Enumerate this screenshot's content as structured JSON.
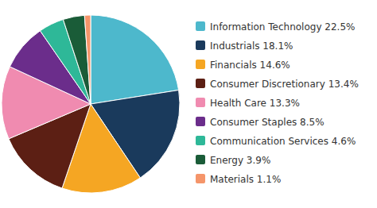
{
  "chart_data": {
    "type": "pie",
    "categories": [
      "Information Technology 22.5%",
      "Industrials 18.1%",
      "Financials 14.6%",
      "Consumer Discretionary 13.4%",
      "Health Care 13.3%",
      "Consumer Staples 8.5%",
      "Communication Services 4.6%",
      "Energy 3.9%",
      "Materials 1.1%"
    ],
    "values": [
      22.5,
      18.1,
      14.6,
      13.4,
      13.3,
      8.5,
      4.6,
      3.9,
      1.1
    ],
    "colors": [
      "#4DB8CC",
      "#1A3A5C",
      "#F5A623",
      "#5C1F14",
      "#F08BB0",
      "#6B2D8B",
      "#2EB898",
      "#1A5C38",
      "#F5956A"
    ],
    "legend": "right"
  }
}
